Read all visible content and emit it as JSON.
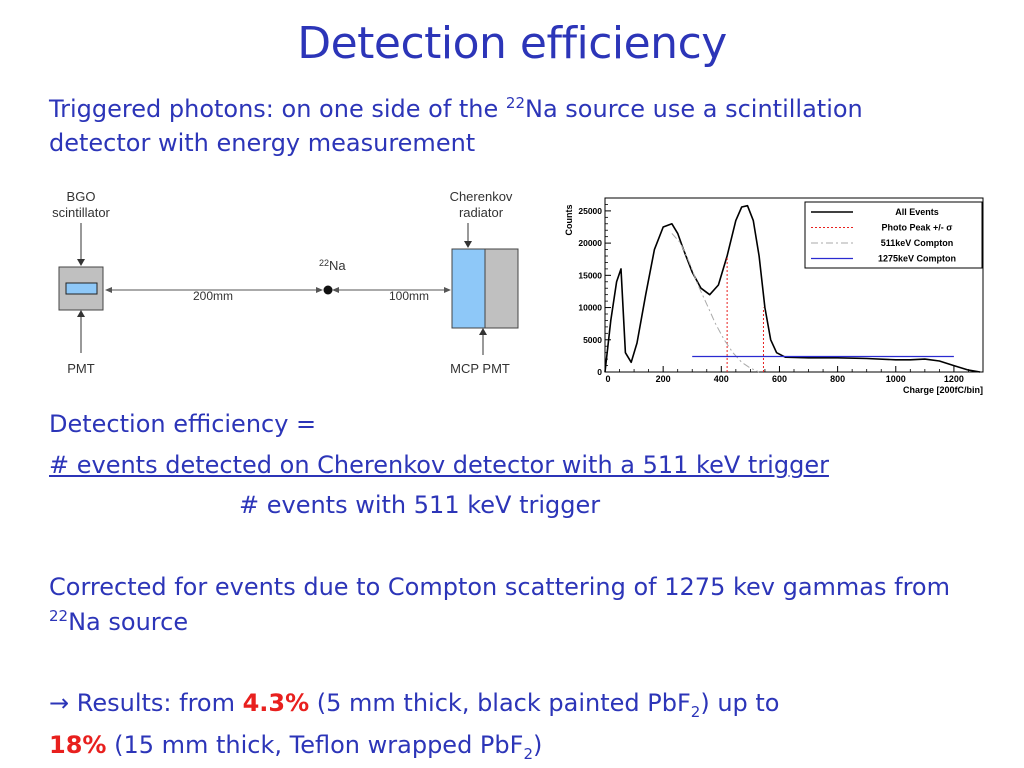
{
  "title": "Detection efficiency",
  "intro": {
    "line1_a": "Triggered photons: on one side of the ",
    "line1_sup": "22",
    "line1_b": "Na source use a scintillation",
    "line2": "detector with energy measurement"
  },
  "diagram": {
    "bgo_line1": "BGO",
    "bgo_line2": "scintillator",
    "cherenkov_line1": "Cherenkov",
    "cherenkov_line2": "radiator",
    "source_sup": "22",
    "source_label": "Na",
    "dist_left": "200mm",
    "dist_right": "100mm",
    "pmt_label": "PMT",
    "mcp_label": "MCP PMT"
  },
  "chart_data": {
    "type": "line",
    "ylabel": "Counts",
    "xlabel": "Charge [200fC/bin]",
    "xlim": [
      0,
      1300
    ],
    "ylim": [
      0,
      27000
    ],
    "x_ticks": [
      0,
      200,
      400,
      600,
      800,
      1000,
      1200
    ],
    "y_ticks": [
      0,
      5000,
      10000,
      15000,
      20000,
      25000
    ],
    "legend_position": "top-right",
    "series": [
      {
        "name": "All Events",
        "color": "#000000",
        "x": [
          0,
          20,
          40,
          55,
          70,
          90,
          110,
          140,
          170,
          200,
          230,
          250,
          270,
          300,
          330,
          360,
          390,
          420,
          450,
          470,
          490,
          510,
          530,
          550,
          570,
          590,
          620,
          700,
          800,
          900,
          1000,
          1050,
          1100,
          1150,
          1200,
          1250,
          1290
        ],
        "y": [
          0,
          8000,
          14000,
          16000,
          3000,
          1500,
          4500,
          12000,
          19000,
          22500,
          23000,
          21500,
          19000,
          15500,
          13000,
          12000,
          13500,
          18000,
          23500,
          25600,
          25800,
          23500,
          18000,
          10000,
          5000,
          3000,
          2300,
          2200,
          2200,
          2100,
          1900,
          1900,
          2000,
          1700,
          1000,
          300,
          0
        ]
      },
      {
        "name": "Photo Peak +/- σ",
        "color": "#e8201e",
        "x": [
          420,
          545
        ],
        "y": [
          14000,
          14000
        ]
      },
      {
        "name": "511keV Compton",
        "color": "#aaaaaa",
        "x": [
          230,
          260,
          290,
          320,
          350,
          380,
          410,
          440,
          470,
          500,
          530
        ],
        "y": [
          21500,
          20000,
          17000,
          13500,
          10500,
          7500,
          5000,
          3000,
          1500,
          600,
          0
        ]
      },
      {
        "name": "1275keV Compton",
        "color": "#2a2ad0",
        "x": [
          300,
          1200
        ],
        "y": [
          2400,
          2400
        ]
      }
    ]
  },
  "efficiency": {
    "label": "Detection efficiency =",
    "numerator": "# events detected on Cherenkov detector with a 511 keV trigger",
    "denominator": "# events with 511 keV  trigger"
  },
  "correction": {
    "line1": "Corrected for events due to Compton scattering of 1275 kev gammas from",
    "line2_sup": "22",
    "line2_b": "Na source"
  },
  "results": {
    "arrow": "→",
    "line1_a": " Results: from ",
    "val1": "4.3%",
    "line1_b": " (5 mm thick, black painted PbF",
    "line1_sub": "2",
    "line1_c": ") up to",
    "val2": "18%",
    "line2_a": " (15 mm thick, Teflon wrapped PbF",
    "line2_sub": "2",
    "line2_b": ")"
  },
  "colors": {
    "text": "#2c35b8",
    "highlight": "#e8201e",
    "radiator_fill": "#8ec8f8",
    "pmt_fill": "#c0c0c0"
  }
}
